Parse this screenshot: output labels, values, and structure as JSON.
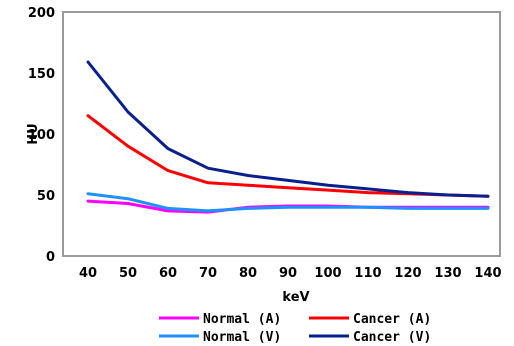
{
  "chart_data": {
    "type": "line",
    "title": "",
    "xlabel": "keV",
    "ylabel": "HU",
    "x": [
      40,
      50,
      60,
      70,
      80,
      90,
      100,
      110,
      120,
      130,
      140
    ],
    "x_tick_labels": [
      "40",
      "50",
      "60",
      "70",
      "80",
      "90",
      "100",
      "110",
      "120",
      "130",
      "140"
    ],
    "y_ticks": [
      0,
      50,
      100,
      150,
      200
    ],
    "y_tick_labels": [
      "0",
      "50",
      "100",
      "150",
      "200"
    ],
    "ylim": [
      0,
      200
    ],
    "grid": false,
    "legend_position": "bottom",
    "series": [
      {
        "name": "Normal (A)",
        "color": "#FF00FF",
        "values": [
          45,
          43,
          37,
          36,
          40,
          41,
          41,
          40,
          40,
          40,
          40
        ]
      },
      {
        "name": "Cancer (A)",
        "color": "#FF0000",
        "values": [
          115,
          90,
          70,
          60,
          58,
          56,
          54,
          52,
          51,
          50,
          49
        ]
      },
      {
        "name": "Normal (V)",
        "color": "#1E90FF",
        "values": [
          51,
          47,
          39,
          37,
          39,
          40,
          40,
          40,
          39,
          39,
          39
        ]
      },
      {
        "name": "Cancer (V)",
        "color": "#0A1F8F",
        "values": [
          159,
          118,
          88,
          72,
          66,
          62,
          58,
          55,
          52,
          50,
          49
        ]
      }
    ]
  }
}
